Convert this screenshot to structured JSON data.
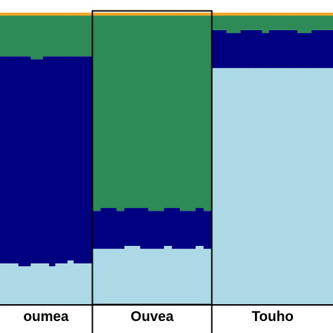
{
  "chart_data": {
    "type": "stacked-bar",
    "description_of_structure": "",
    "ylim": [
      0,
      1
    ],
    "colors": {
      "light_blue": "#add8e6",
      "navy": "#000080",
      "green": "#2e8b57",
      "orange": "#f5a623"
    },
    "series_order": [
      "light_blue",
      "navy",
      "green",
      "orange"
    ],
    "populations": [
      {
        "label": "oumea",
        "bars": [
          [
            0.14,
            0.71,
            0.14,
            0.01
          ],
          [
            0.14,
            0.71,
            0.14,
            0.01
          ],
          [
            0.14,
            0.71,
            0.14,
            0.01
          ],
          [
            0.13,
            0.72,
            0.14,
            0.01
          ],
          [
            0.13,
            0.72,
            0.14,
            0.01
          ],
          [
            0.14,
            0.7,
            0.15,
            0.01
          ],
          [
            0.14,
            0.7,
            0.15,
            0.01
          ],
          [
            0.14,
            0.71,
            0.14,
            0.01
          ],
          [
            0.13,
            0.72,
            0.14,
            0.01
          ],
          [
            0.14,
            0.71,
            0.14,
            0.01
          ],
          [
            0.14,
            0.71,
            0.14,
            0.01
          ],
          [
            0.15,
            0.7,
            0.14,
            0.01
          ],
          [
            0.14,
            0.71,
            0.14,
            0.01
          ],
          [
            0.14,
            0.71,
            0.14,
            0.01
          ],
          [
            0.14,
            0.71,
            0.14,
            0.01
          ]
        ]
      },
      {
        "label": "Ouvea",
        "bars": [
          [
            0.19,
            0.13,
            0.67,
            0.01
          ],
          [
            0.19,
            0.14,
            0.66,
            0.01
          ],
          [
            0.19,
            0.14,
            0.66,
            0.01
          ],
          [
            0.19,
            0.13,
            0.67,
            0.01
          ],
          [
            0.2,
            0.13,
            0.66,
            0.01
          ],
          [
            0.2,
            0.13,
            0.66,
            0.01
          ],
          [
            0.19,
            0.14,
            0.66,
            0.01
          ],
          [
            0.19,
            0.13,
            0.67,
            0.01
          ],
          [
            0.19,
            0.13,
            0.67,
            0.01
          ],
          [
            0.2,
            0.13,
            0.66,
            0.01
          ],
          [
            0.19,
            0.14,
            0.66,
            0.01
          ],
          [
            0.19,
            0.13,
            0.67,
            0.01
          ],
          [
            0.19,
            0.13,
            0.67,
            0.01
          ],
          [
            0.2,
            0.13,
            0.66,
            0.01
          ],
          [
            0.19,
            0.13,
            0.67,
            0.01
          ]
        ]
      },
      {
        "label": "Touho",
        "bars": [
          [
            0.81,
            0.13,
            0.05,
            0.01
          ],
          [
            0.81,
            0.13,
            0.05,
            0.01
          ],
          [
            0.81,
            0.12,
            0.06,
            0.01
          ],
          [
            0.81,
            0.12,
            0.06,
            0.01
          ],
          [
            0.81,
            0.13,
            0.05,
            0.01
          ],
          [
            0.81,
            0.13,
            0.05,
            0.01
          ],
          [
            0.81,
            0.13,
            0.05,
            0.01
          ],
          [
            0.81,
            0.12,
            0.06,
            0.01
          ],
          [
            0.81,
            0.13,
            0.05,
            0.01
          ],
          [
            0.81,
            0.13,
            0.05,
            0.01
          ],
          [
            0.81,
            0.13,
            0.05,
            0.01
          ],
          [
            0.81,
            0.13,
            0.05,
            0.01
          ],
          [
            0.81,
            0.12,
            0.06,
            0.01
          ],
          [
            0.81,
            0.12,
            0.06,
            0.01
          ],
          [
            0.81,
            0.13,
            0.05,
            0.01
          ],
          [
            0.81,
            0.13,
            0.05,
            0.01
          ],
          [
            0.81,
            0.13,
            0.05,
            0.01
          ]
        ]
      }
    ]
  }
}
